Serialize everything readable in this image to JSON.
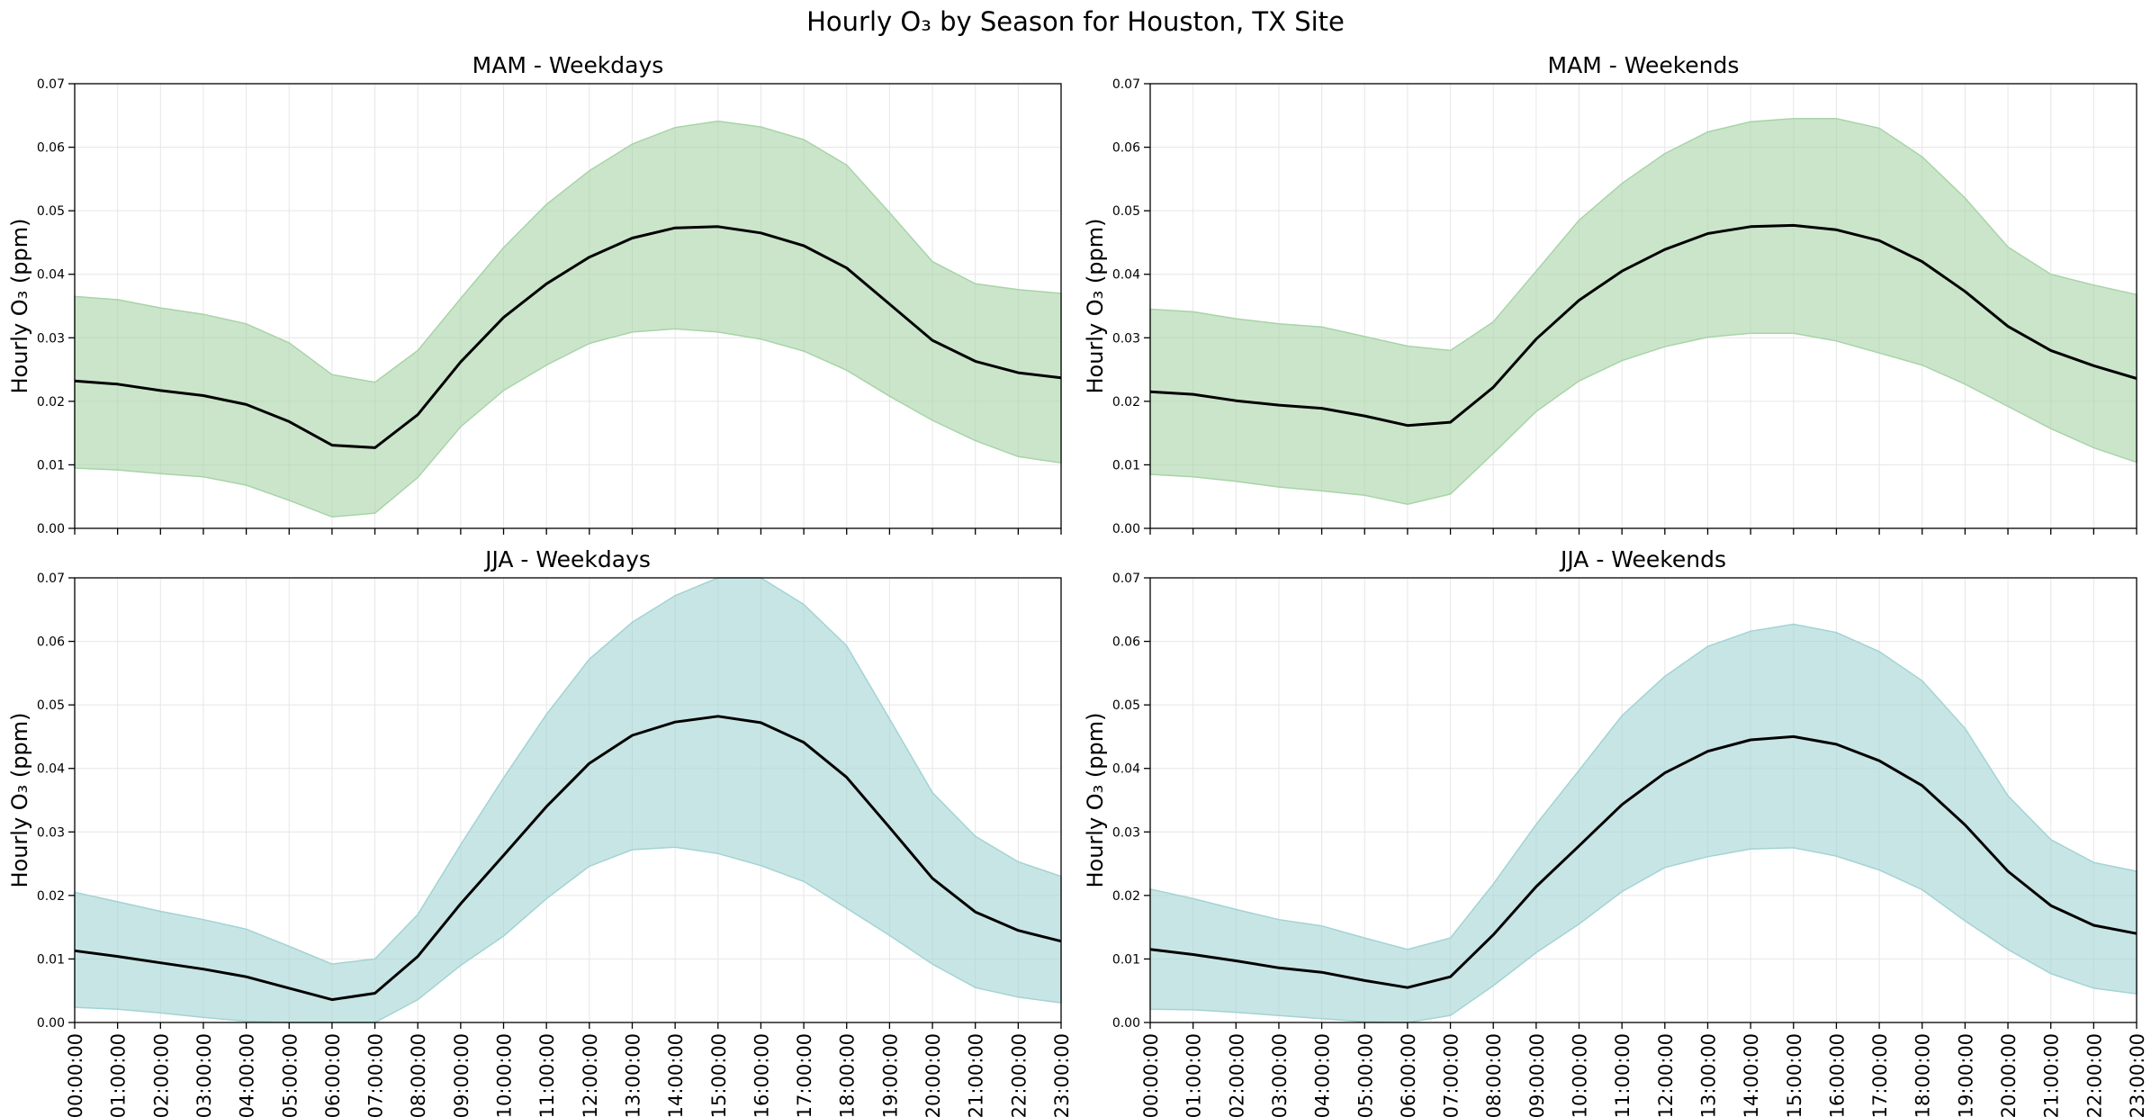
{
  "figure": {
    "title": "Hourly O₃ by Season for Houston, TX Site"
  },
  "chart_data": [
    {
      "type": "line",
      "title": "MAM - Weekdays",
      "xlabel": "",
      "ylabel": "Hourly O₃ (ppm)",
      "ylim": [
        0,
        0.07
      ],
      "yticks": [
        "0.00",
        "0.01",
        "0.02",
        "0.03",
        "0.04",
        "0.05",
        "0.06",
        "0.07"
      ],
      "grid": true,
      "band_color": "#a8d4a8",
      "x": [
        "00:00:00",
        "01:00:00",
        "02:00:00",
        "03:00:00",
        "04:00:00",
        "05:00:00",
        "06:00:00",
        "07:00:00",
        "08:00:00",
        "09:00:00",
        "10:00:00",
        "11:00:00",
        "12:00:00",
        "13:00:00",
        "14:00:00",
        "15:00:00",
        "16:00:00",
        "17:00:00",
        "18:00:00",
        "19:00:00",
        "20:00:00",
        "21:00:00",
        "22:00:00",
        "23:00:00"
      ],
      "mean": [
        0.0232,
        0.0227,
        0.0217,
        0.0209,
        0.0195,
        0.0168,
        0.0131,
        0.0127,
        0.0179,
        0.0262,
        0.0332,
        0.0385,
        0.0427,
        0.0457,
        0.0473,
        0.0475,
        0.0465,
        0.0445,
        0.041,
        0.0353,
        0.0296,
        0.0263,
        0.0245,
        0.0237
      ],
      "upper": [
        0.0365,
        0.036,
        0.0347,
        0.0337,
        0.0322,
        0.0292,
        0.0242,
        0.023,
        0.028,
        0.0362,
        0.0442,
        0.051,
        0.0563,
        0.0605,
        0.0631,
        0.0641,
        0.0632,
        0.0612,
        0.0572,
        0.0497,
        0.042,
        0.0385,
        0.0376,
        0.037
      ],
      "lower": [
        0.0095,
        0.0092,
        0.0086,
        0.0081,
        0.0068,
        0.0044,
        0.0018,
        0.0024,
        0.008,
        0.016,
        0.0217,
        0.0257,
        0.0291,
        0.0309,
        0.0314,
        0.0309,
        0.0298,
        0.0279,
        0.0249,
        0.0208,
        0.017,
        0.0138,
        0.0113,
        0.0103
      ]
    },
    {
      "type": "line",
      "title": "MAM - Weekends",
      "xlabel": "",
      "ylabel": "Hourly O₃ (ppm)",
      "ylim": [
        0,
        0.07
      ],
      "yticks": [
        "0.00",
        "0.01",
        "0.02",
        "0.03",
        "0.04",
        "0.05",
        "0.06",
        "0.07"
      ],
      "grid": true,
      "band_color": "#a8d4a8",
      "x": [
        "00:00:00",
        "01:00:00",
        "02:00:00",
        "03:00:00",
        "04:00:00",
        "05:00:00",
        "06:00:00",
        "07:00:00",
        "08:00:00",
        "09:00:00",
        "10:00:00",
        "11:00:00",
        "12:00:00",
        "13:00:00",
        "14:00:00",
        "15:00:00",
        "16:00:00",
        "17:00:00",
        "18:00:00",
        "19:00:00",
        "20:00:00",
        "21:00:00",
        "22:00:00",
        "23:00:00"
      ],
      "mean": [
        0.0215,
        0.0211,
        0.0201,
        0.0194,
        0.0189,
        0.0177,
        0.0162,
        0.0167,
        0.0222,
        0.0298,
        0.0359,
        0.0405,
        0.0439,
        0.0464,
        0.0475,
        0.0477,
        0.047,
        0.0453,
        0.042,
        0.0373,
        0.0318,
        0.028,
        0.0256,
        0.0236
      ],
      "upper": [
        0.0345,
        0.0341,
        0.033,
        0.0322,
        0.0317,
        0.0302,
        0.0287,
        0.028,
        0.0325,
        0.0405,
        0.0485,
        0.0543,
        0.059,
        0.0624,
        0.064,
        0.0645,
        0.0645,
        0.063,
        0.0585,
        0.052,
        0.0443,
        0.04,
        0.0383,
        0.0368
      ],
      "lower": [
        0.0085,
        0.0081,
        0.0074,
        0.0065,
        0.0059,
        0.0052,
        0.0038,
        0.0054,
        0.0118,
        0.0184,
        0.0232,
        0.0264,
        0.0286,
        0.0301,
        0.0307,
        0.0307,
        0.0295,
        0.0276,
        0.0257,
        0.0227,
        0.0192,
        0.0157,
        0.0127,
        0.0104
      ]
    },
    {
      "type": "line",
      "title": "JJA - Weekdays",
      "xlabel": "",
      "ylabel": "Hourly O₃ (ppm)",
      "ylim": [
        0,
        0.07
      ],
      "yticks": [
        "0.00",
        "0.01",
        "0.02",
        "0.03",
        "0.04",
        "0.05",
        "0.06",
        "0.07"
      ],
      "grid": true,
      "band_color": "#a3d3d3",
      "x": [
        "00:00:00",
        "01:00:00",
        "02:00:00",
        "03:00:00",
        "04:00:00",
        "05:00:00",
        "06:00:00",
        "07:00:00",
        "08:00:00",
        "09:00:00",
        "10:00:00",
        "11:00:00",
        "12:00:00",
        "13:00:00",
        "14:00:00",
        "15:00:00",
        "16:00:00",
        "17:00:00",
        "18:00:00",
        "19:00:00",
        "20:00:00",
        "21:00:00",
        "22:00:00",
        "23:00:00"
      ],
      "mean": [
        0.0113,
        0.0104,
        0.0094,
        0.0084,
        0.0072,
        0.0054,
        0.0036,
        0.0046,
        0.0104,
        0.0187,
        0.0263,
        0.034,
        0.0408,
        0.0452,
        0.0473,
        0.0482,
        0.0472,
        0.0441,
        0.0386,
        0.0307,
        0.0227,
        0.0174,
        0.0145,
        0.0128
      ],
      "upper": [
        0.0205,
        0.019,
        0.0175,
        0.0162,
        0.0147,
        0.012,
        0.0092,
        0.01,
        0.017,
        0.028,
        0.0385,
        0.0485,
        0.0572,
        0.063,
        0.0672,
        0.07,
        0.07,
        0.0658,
        0.0593,
        0.0478,
        0.0362,
        0.0293,
        0.0253,
        0.023
      ],
      "lower": [
        0.0024,
        0.0021,
        0.0015,
        0.0008,
        0.0002,
        0.0,
        0.0,
        0.0,
        0.0036,
        0.009,
        0.0136,
        0.0195,
        0.0246,
        0.0272,
        0.0276,
        0.0266,
        0.0247,
        0.0222,
        0.018,
        0.0137,
        0.0092,
        0.0055,
        0.004,
        0.0031
      ]
    },
    {
      "type": "line",
      "title": "JJA - Weekends",
      "xlabel": "",
      "ylabel": "Hourly O₃ (ppm)",
      "ylim": [
        0,
        0.07
      ],
      "yticks": [
        "0.00",
        "0.01",
        "0.02",
        "0.03",
        "0.04",
        "0.05",
        "0.06",
        "0.07"
      ],
      "grid": true,
      "band_color": "#a3d3d3",
      "x": [
        "00:00:00",
        "01:00:00",
        "02:00:00",
        "03:00:00",
        "04:00:00",
        "05:00:00",
        "06:00:00",
        "07:00:00",
        "08:00:00",
        "09:00:00",
        "10:00:00",
        "11:00:00",
        "12:00:00",
        "13:00:00",
        "14:00:00",
        "15:00:00",
        "16:00:00",
        "17:00:00",
        "18:00:00",
        "19:00:00",
        "20:00:00",
        "21:00:00",
        "22:00:00",
        "23:00:00"
      ],
      "mean": [
        0.0115,
        0.0107,
        0.0097,
        0.0086,
        0.0079,
        0.0066,
        0.0055,
        0.0072,
        0.0138,
        0.0214,
        0.0278,
        0.0343,
        0.0393,
        0.0427,
        0.0445,
        0.045,
        0.0438,
        0.0412,
        0.0373,
        0.0311,
        0.0238,
        0.0184,
        0.0153,
        0.014
      ],
      "upper": [
        0.021,
        0.0195,
        0.0178,
        0.0162,
        0.0152,
        0.0133,
        0.0115,
        0.0133,
        0.0218,
        0.0312,
        0.0397,
        0.0483,
        0.0545,
        0.0592,
        0.0616,
        0.0627,
        0.0614,
        0.0584,
        0.0538,
        0.0463,
        0.0357,
        0.0288,
        0.0252,
        0.0238
      ],
      "lower": [
        0.0021,
        0.002,
        0.0016,
        0.0011,
        0.0006,
        0.0001,
        0.0,
        0.0011,
        0.0058,
        0.011,
        0.0155,
        0.0206,
        0.0244,
        0.0261,
        0.0273,
        0.0275,
        0.0262,
        0.024,
        0.0209,
        0.016,
        0.0115,
        0.0077,
        0.0054,
        0.0045
      ]
    }
  ]
}
